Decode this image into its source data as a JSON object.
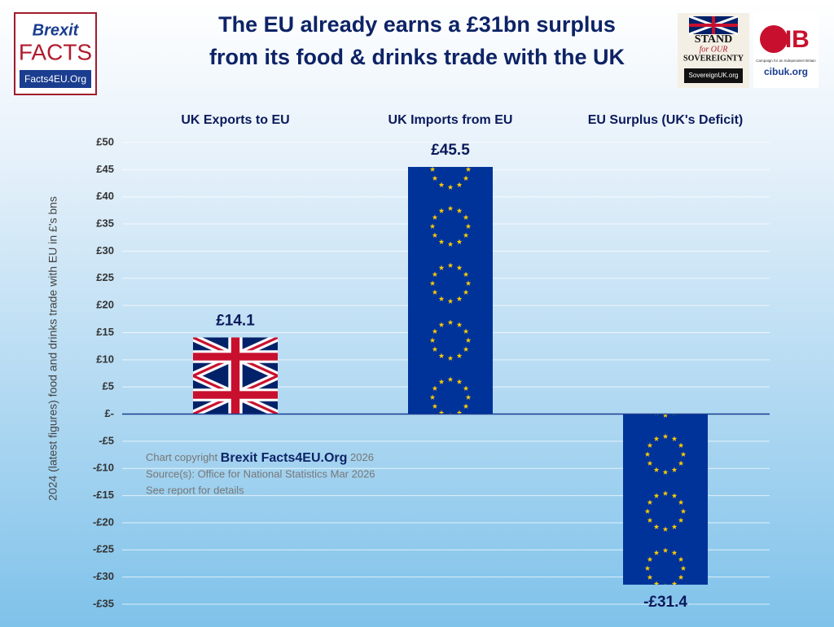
{
  "chart_data": {
    "type": "bar",
    "title": [
      "The EU already earns a £31bn surplus",
      "from its food & drinks trade with the UK"
    ],
    "y_axis_label": "2024 (latest figures) food and drinks trade with EU in £'s bns",
    "categories": [
      "UK Exports to EU",
      "UK Imports from EU",
      "EU Surplus (UK's Deficit)"
    ],
    "values": [
      14.1,
      45.5,
      -31.4
    ],
    "value_labels": [
      "£14.1",
      "£45.5",
      "-£31.4"
    ],
    "colors": [
      "#012169",
      "#003399",
      "#003399"
    ],
    "ylim": [
      -35,
      50
    ],
    "yticks": [
      {
        "value": 50,
        "label": "£50"
      },
      {
        "value": 45,
        "label": "£45"
      },
      {
        "value": 40,
        "label": "£40"
      },
      {
        "value": 35,
        "label": "£35"
      },
      {
        "value": 30,
        "label": "£30"
      },
      {
        "value": 25,
        "label": "£25"
      },
      {
        "value": 20,
        "label": "£20"
      },
      {
        "value": 15,
        "label": "£15"
      },
      {
        "value": 10,
        "label": "£10"
      },
      {
        "value": 5,
        "label": "£5"
      },
      {
        "value": 0,
        "label": "£-"
      },
      {
        "value": -5,
        "label": "-£5"
      },
      {
        "value": -10,
        "label": "-£10"
      },
      {
        "value": -15,
        "label": "-£15"
      },
      {
        "value": -20,
        "label": "-£20"
      },
      {
        "value": -25,
        "label": "-£25"
      },
      {
        "value": -30,
        "label": "-£30"
      },
      {
        "value": -35,
        "label": "-£35"
      }
    ],
    "grid": true,
    "notes": {
      "copyright_prefix": "Chart copyright",
      "copyright_brand": "Brexit Facts4EU.Org",
      "copyright_year": "2026",
      "source": "Source(s): Office for National Statistics Mar 2026",
      "details": "See report for details"
    },
    "logos": {
      "brexit_facts": [
        "Brexit",
        "FACTS",
        "Facts4EU.Org"
      ],
      "sovereignty": [
        "STAND",
        "for OUR",
        "SOVEREIGNTY",
        "SovereignUK.org"
      ],
      "cib": [
        "CIB",
        "Campaign for an Independent Britain",
        "cibuk.org"
      ]
    }
  }
}
